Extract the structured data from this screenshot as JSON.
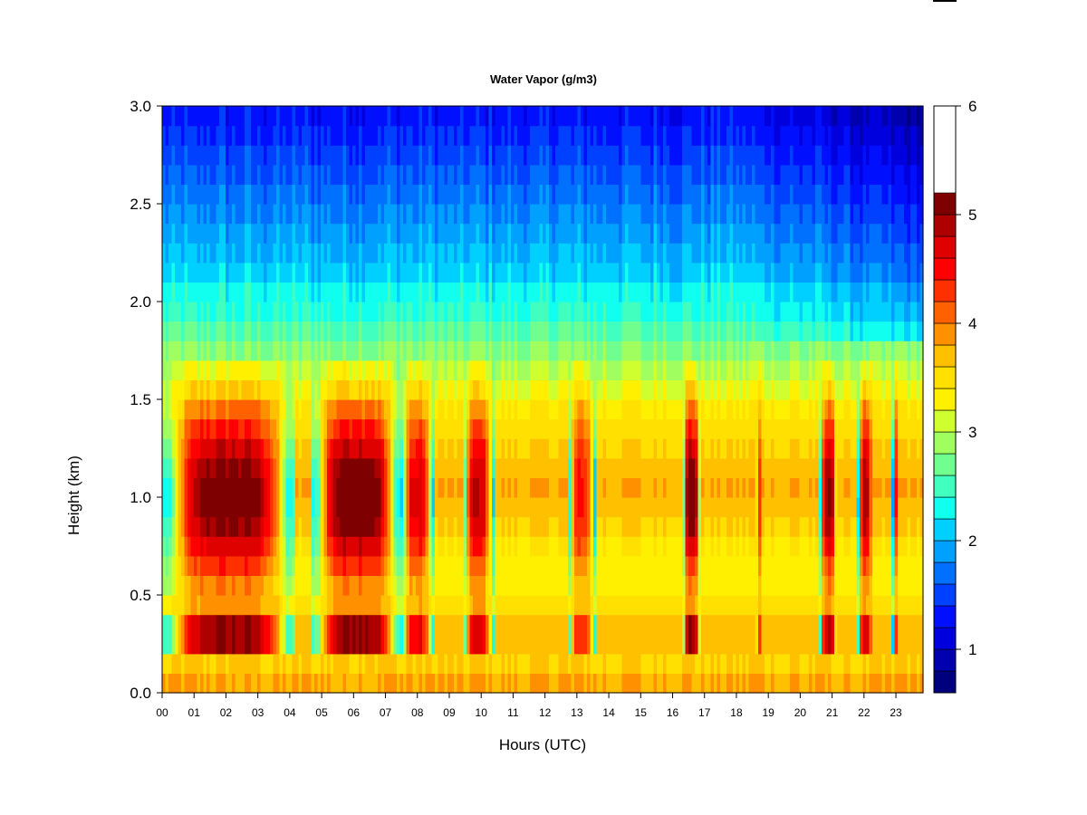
{
  "chart_data": {
    "type": "heatmap",
    "title": "Water Vapor (g/m3)",
    "xlabel": "Hours (UTC)",
    "ylabel": "Height (km)",
    "x_tick_labels": [
      "00",
      "01",
      "02",
      "03",
      "04",
      "05",
      "06",
      "07",
      "08",
      "09",
      "10",
      "11",
      "12",
      "13",
      "14",
      "15",
      "16",
      "17",
      "18",
      "19",
      "20",
      "21",
      "22",
      "23"
    ],
    "y_tick_labels": [
      "0.0",
      "0.5",
      "1.0",
      "1.5",
      "2.0",
      "2.5",
      "3.0"
    ],
    "y_ticks": [
      0.0,
      0.5,
      1.0,
      1.5,
      2.0,
      2.5,
      3.0
    ],
    "xlim": [
      0,
      23.85
    ],
    "ylim": [
      0,
      3.0
    ],
    "colorbar": {
      "min": 0.6,
      "max": 6.0,
      "levels": [
        0.6,
        0.8,
        1.0,
        1.2,
        1.4,
        1.6,
        1.8,
        2.0,
        2.2,
        2.4,
        2.6,
        2.8,
        3.0,
        3.2,
        3.4,
        3.6,
        3.8,
        4.0,
        4.2,
        4.4,
        4.6,
        4.8,
        5.0,
        5.2,
        5.4,
        5.6,
        5.8,
        6.0
      ],
      "colors": [
        "#00007F",
        "#0000AF",
        "#0000DF",
        "#0010FF",
        "#0040FF",
        "#0070FF",
        "#00A0FF",
        "#00D0FF",
        "#10FFEF",
        "#40FFBF",
        "#70FF8F",
        "#A0FF5F",
        "#D0FF2F",
        "#FFF000",
        "#FFE000",
        "#FFC000",
        "#FF9000",
        "#FF6000",
        "#FF3000",
        "#FF0000",
        "#DF0000",
        "#AF0000",
        "#7F0000"
      ],
      "tick_labels": [
        "1",
        "2",
        "3",
        "4",
        "5",
        "6"
      ],
      "ticks": [
        1,
        2,
        3,
        4,
        5,
        6
      ]
    },
    "heights_km": [
      0.05,
      0.15,
      0.25,
      0.35,
      0.45,
      0.55,
      0.65,
      0.75,
      0.85,
      0.95,
      1.05,
      1.15,
      1.25,
      1.35,
      1.45,
      1.55,
      1.65,
      1.75,
      1.85,
      1.95,
      2.05,
      2.15,
      2.25,
      2.35,
      2.45,
      2.55,
      2.65,
      2.75,
      2.85,
      2.95
    ],
    "hours": [
      0.5,
      1.5,
      2.5,
      3.5,
      4.5,
      5.5,
      6.5,
      7.5,
      8.5,
      9.5,
      10.5,
      11.5,
      12.5,
      13.5,
      14.5,
      15.5,
      16.5,
      17.5,
      18.5,
      19.5,
      20.5,
      21.5,
      22.5,
      23.5
    ],
    "baseline_profile_gm3": [
      3.8,
      3.6,
      3.7,
      3.7,
      3.5,
      3.3,
      3.3,
      3.4,
      3.6,
      3.7,
      3.8,
      3.7,
      3.6,
      3.5,
      3.4,
      3.2,
      3.0,
      2.8,
      2.6,
      2.4,
      2.3,
      2.1,
      2.0,
      1.9,
      1.8,
      1.7,
      1.6,
      1.5,
      1.4,
      1.3
    ],
    "moist_episodes": [
      {
        "start_hour": 0.0,
        "end_hour": 4.2,
        "peak_gm3": 5.2
      },
      {
        "start_hour": 4.7,
        "end_hour": 7.5,
        "peak_gm3": 5.3
      },
      {
        "start_hour": 7.5,
        "end_hour": 8.5,
        "peak_gm3": 4.7
      },
      {
        "start_hour": 9.4,
        "end_hour": 10.4,
        "peak_gm3": 4.8
      },
      {
        "start_hour": 12.7,
        "end_hour": 13.6,
        "peak_gm3": 4.4
      },
      {
        "start_hour": 16.3,
        "end_hour": 16.9,
        "peak_gm3": 5.2
      },
      {
        "start_hour": 18.6,
        "end_hour": 18.8,
        "peak_gm3": 4.3
      },
      {
        "start_hour": 20.6,
        "end_hour": 21.2,
        "peak_gm3": 5.0
      },
      {
        "start_hour": 21.8,
        "end_hour": 22.3,
        "peak_gm3": 4.9
      },
      {
        "start_hour": 22.9,
        "end_hour": 23.1,
        "peak_gm3": 4.4
      }
    ]
  }
}
